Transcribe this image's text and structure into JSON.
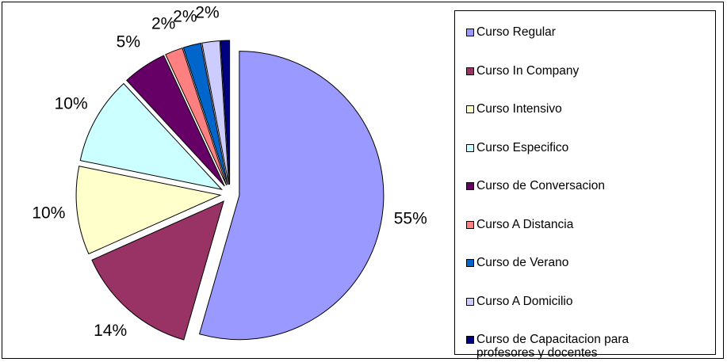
{
  "chart_data": {
    "type": "pie",
    "categories": [
      "Curso Regular",
      "Curso In Company",
      "Curso Intensivo",
      "Curso Especifico",
      "Curso de Conversacion",
      "Curso A Distancia",
      "Curso de Verano",
      "Curso A Domicilio",
      "Curso de Capacitacion para profesores y docentes"
    ],
    "values": [
      55,
      14,
      10,
      10,
      5,
      2,
      2,
      2,
      1
    ],
    "value_labels": [
      "55%",
      "14%",
      "10%",
      "10%",
      "5%",
      "2%",
      "2%",
      "2%",
      null
    ],
    "colors": [
      "#9999ff",
      "#993366",
      "#ffffcc",
      "#ccffff",
      "#660066",
      "#ff8080",
      "#0066cc",
      "#ccccff",
      "#000080"
    ],
    "legend": "right"
  }
}
